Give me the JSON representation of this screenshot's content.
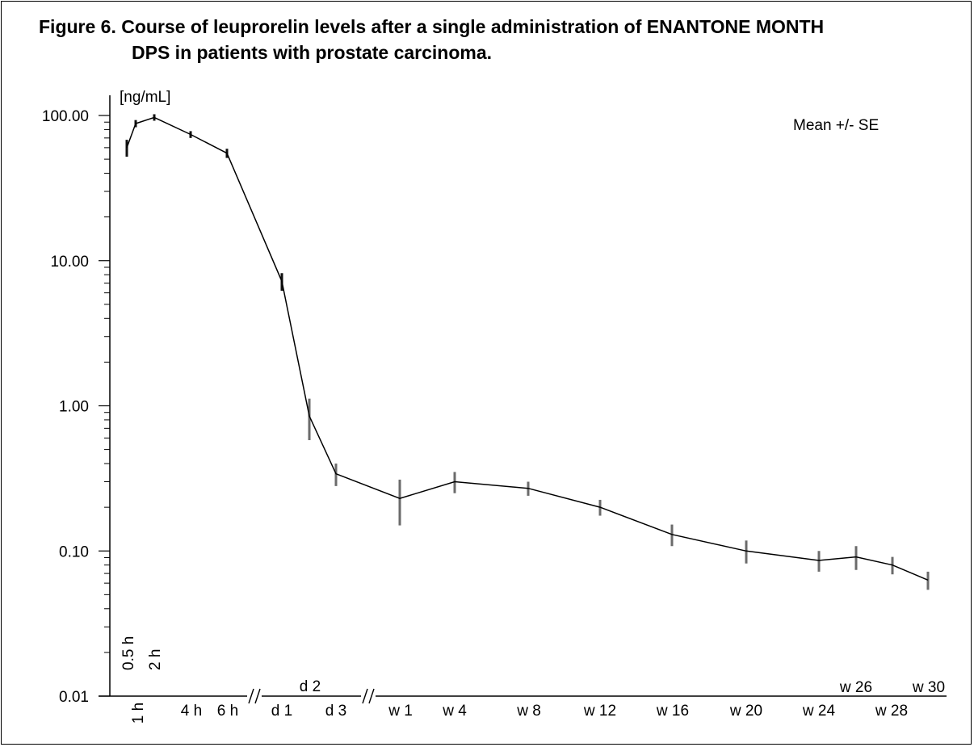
{
  "chart_data": {
    "type": "line",
    "title_line1": "Figure 6. Course of leuprorelin levels after a single administration of ENANTONE MONTH",
    "title_line2": "DPS in patients with prostate carcinoma.",
    "ylabel": "[ng/mL]",
    "annotation": "Mean +/- SE",
    "yscale": "log",
    "ylim": [
      0.01,
      100
    ],
    "y_ticks": [
      {
        "value": 100,
        "label": "100.00"
      },
      {
        "value": 10,
        "label": "10.00"
      },
      {
        "value": 1,
        "label": "1.00"
      },
      {
        "value": 0.1,
        "label": "0.10"
      },
      {
        "value": 0.01,
        "label": "0.01"
      }
    ],
    "x_axis_break_marks": 2,
    "series": [
      {
        "points": [
          {
            "x": "0.5 h",
            "y": 60,
            "err": 8
          },
          {
            "x": "1 h",
            "y": 88,
            "err": 5
          },
          {
            "x": "2 h",
            "y": 97,
            "err": 5
          },
          {
            "x": "4 h",
            "y": 74,
            "err": 4
          },
          {
            "x": "6 h",
            "y": 55,
            "err": 4
          },
          {
            "x": "d 1",
            "y": 7.2,
            "err": 1.0
          },
          {
            "x": "d 2",
            "y": 0.85,
            "err": 0.27
          },
          {
            "x": "d 3",
            "y": 0.34,
            "err": 0.06
          },
          {
            "x": "w 1",
            "y": 0.23,
            "err": 0.08
          },
          {
            "x": "w 4",
            "y": 0.3,
            "err": 0.05
          },
          {
            "x": "w 8",
            "y": 0.27,
            "err": 0.03
          },
          {
            "x": "w 12",
            "y": 0.2,
            "err": 0.025
          },
          {
            "x": "w 16",
            "y": 0.13,
            "err": 0.022
          },
          {
            "x": "w 20",
            "y": 0.1,
            "err": 0.018
          },
          {
            "x": "w 24",
            "y": 0.086,
            "err": 0.014
          },
          {
            "x": "w 26",
            "y": 0.091,
            "err": 0.017
          },
          {
            "x": "w 28",
            "y": 0.08,
            "err": 0.011
          },
          {
            "x": "w 30",
            "y": 0.063,
            "err": 0.009
          }
        ]
      }
    ]
  }
}
